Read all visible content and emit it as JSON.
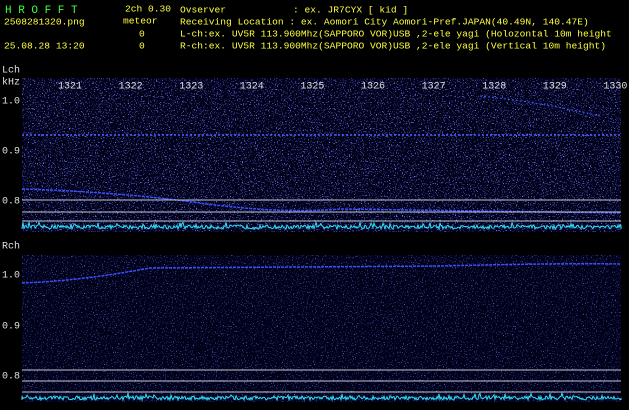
{
  "header": {
    "app": "H R O F F T",
    "version": "2ch 0.30",
    "file": "2508281320.png",
    "datetime": "25.08.28 13:20",
    "meteor_label": "meteor",
    "lch_count": 0,
    "rch_count": 0,
    "observer_label": "Ovserver",
    "observer": ": ex. JR7CYX [ kid ]",
    "location": "Receiving Location : ex. Aomori City Aomori-Pref.JAPAN(40.49N, 140.47E)",
    "lch_info": "L-ch:ex. UV5R 113.900Mhz(SAPPORO VOR)USB ,2-ele yagi (Holozontal 10m height",
    "rch_info": "R-ch:ex. UV5R 113.900Mhz(SAPPORO VOR)USB ,2-ele yagi (Vertical 10m height)"
  },
  "lch": {
    "label": "Lch",
    "unit": "kHz",
    "minutes": [
      "1321",
      "1322",
      "1323",
      "1324",
      "1325",
      "1326",
      "1327",
      "1328",
      "1329",
      "1330"
    ],
    "freq_labels": [
      "1.0",
      "0.9",
      "0.8"
    ]
  },
  "rch": {
    "label": "Rch",
    "freq_labels": [
      "1.0",
      "0.9",
      "0.8"
    ]
  }
}
